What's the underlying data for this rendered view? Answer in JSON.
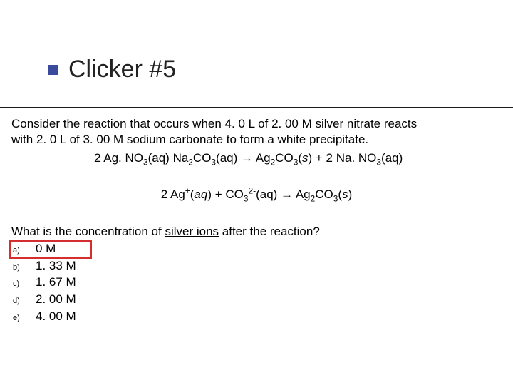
{
  "title": "Clicker #5",
  "intro_line1": "Consider the reaction that occurs when 4. 0 L of 2. 00 M silver nitrate reacts",
  "intro_line2": "with 2. 0 L of 3. 00 M sodium carbonate to form a white precipitate.",
  "eq1_html": "2 Ag. NO<sub>3</sub>(aq) Na<sub>2</sub>CO<sub>3</sub>(aq) &rarr; Ag<sub>2</sub>CO<sub>3</sub>(<span class='ital'>s</span>) + 2 Na. NO<sub>3</sub>(aq)",
  "eq2_html": "2 Ag<sup>+</sup>(<span class='ital'>aq</span>) + CO<sub>3</sub><sup>2-</sup>(aq) &rarr; Ag<sub>2</sub>CO<sub>3</sub>(<span class='ital'>s</span>)",
  "prompt_html": "What is the concentration of <span class='under'>silver ions</span> after the reaction?",
  "options": [
    {
      "marker": "a)",
      "value": "0 M",
      "correct": true
    },
    {
      "marker": "b)",
      "value": "1. 33 M",
      "correct": false
    },
    {
      "marker": "c)",
      "value": "1. 67 M",
      "correct": false
    },
    {
      "marker": "d)",
      "value": "2. 00 M",
      "correct": false
    },
    {
      "marker": "e)",
      "value": "4. 00 M",
      "correct": false
    }
  ],
  "colors": {
    "bullet": "#3a4a9c",
    "rule": "#1a1a1a",
    "highlight": "#d42e2e",
    "text": "#000000",
    "bg": "#ffffff"
  }
}
